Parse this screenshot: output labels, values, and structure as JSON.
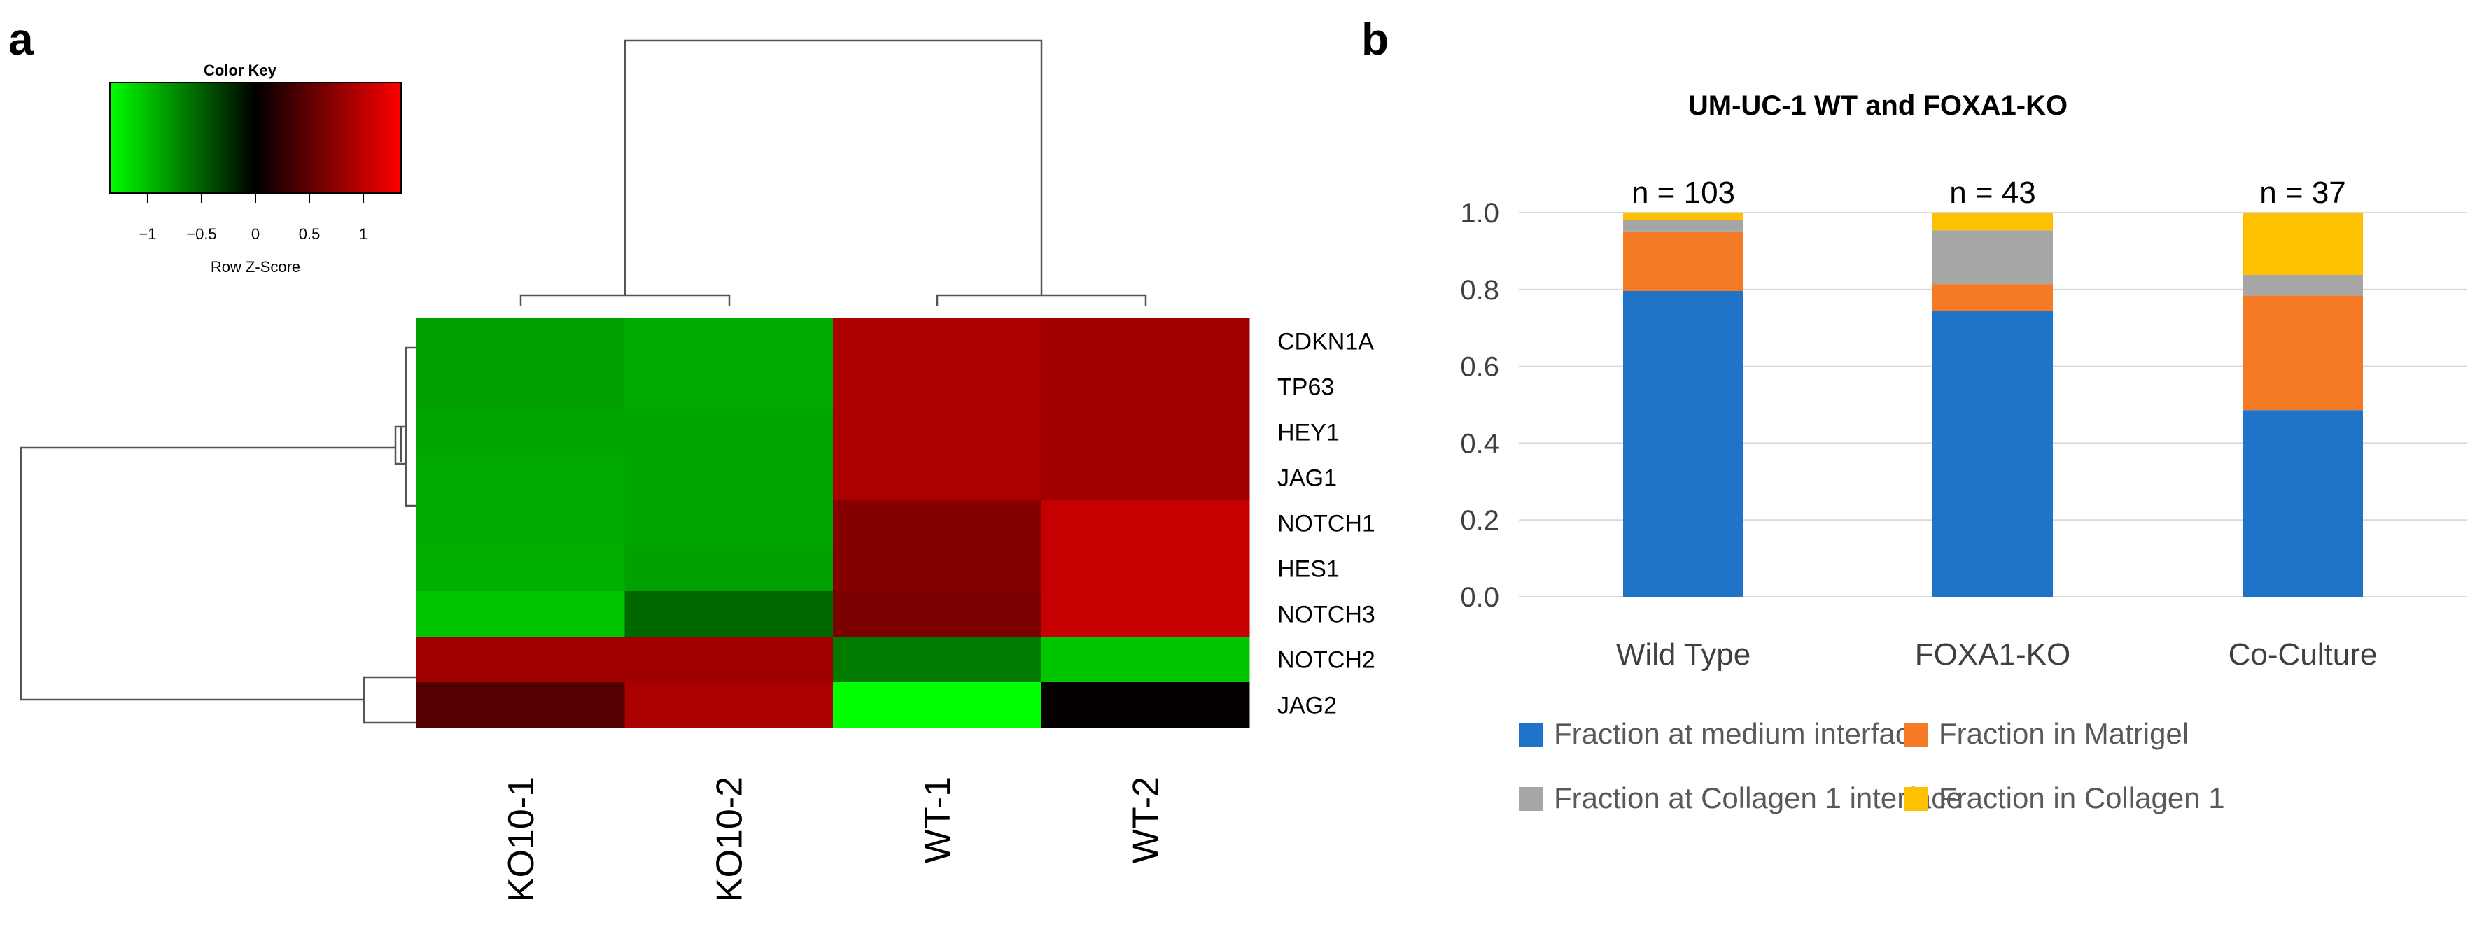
{
  "panel_labels": {
    "a": "a",
    "b": "b"
  },
  "heatmap": {
    "color_key": {
      "title": "Color Key",
      "xlabel": "Row Z-Score",
      "ticks": [
        "−1",
        "−0.5",
        "0",
        "0.5",
        "1"
      ],
      "tick_values": [
        -1,
        -0.5,
        0,
        0.5,
        1
      ],
      "range": [
        -1.35,
        1.35
      ],
      "low_color": "#00ff00",
      "mid_color": "#000000",
      "high_color": "#ff0000"
    },
    "genes": [
      "CDKN1A",
      "TP63",
      "HEY1",
      "JAG1",
      "NOTCH1",
      "HES1",
      "NOTCH3",
      "NOTCH2",
      "JAG2"
    ],
    "samples": [
      "KO10-1",
      "KO10-2",
      "WT-1",
      "WT-2"
    ],
    "z_scores": [
      [
        -0.85,
        -0.9,
        0.9,
        0.85
      ],
      [
        -0.85,
        -0.9,
        0.9,
        0.85
      ],
      [
        -0.88,
        -0.88,
        0.9,
        0.85
      ],
      [
        -0.9,
        -0.88,
        0.9,
        0.85
      ],
      [
        -0.9,
        -0.88,
        0.7,
        1.05
      ],
      [
        -0.92,
        -0.85,
        0.7,
        1.05
      ],
      [
        -1.05,
        -0.55,
        0.65,
        1.05
      ],
      [
        0.85,
        0.85,
        -0.65,
        -1.05
      ],
      [
        0.45,
        0.9,
        -1.35,
        0.02
      ]
    ]
  },
  "chart_data": {
    "type": "bar",
    "stacked": true,
    "title": "UM-UC-1 WT and FOXA1-KO",
    "categories": [
      "Wild Type",
      "FOXA1-KO",
      "Co-Culture"
    ],
    "n_labels": [
      "n = 103",
      "n = 43",
      "n = 37"
    ],
    "ylim": [
      0,
      1.0
    ],
    "yticks": [
      "0.0",
      "0.2",
      "0.4",
      "0.6",
      "0.8",
      "1.0"
    ],
    "ytick_values": [
      0,
      0.2,
      0.4,
      0.6,
      0.8,
      1.0
    ],
    "series": [
      {
        "name": "Fraction at medium interface",
        "color": "#1f74c9",
        "values": [
          0.796,
          0.744,
          0.486
        ]
      },
      {
        "name": "Fraction in Matrigel",
        "color": "#f47a26",
        "values": [
          0.155,
          0.07,
          0.298
        ]
      },
      {
        "name": "Fraction at Collagen 1 interface",
        "color": "#a6a6a6",
        "values": [
          0.029,
          0.14,
          0.054
        ]
      },
      {
        "name": "Fraction in Collagen 1",
        "color": "#ffc000",
        "values": [
          0.02,
          0.046,
          0.162
        ]
      }
    ]
  }
}
